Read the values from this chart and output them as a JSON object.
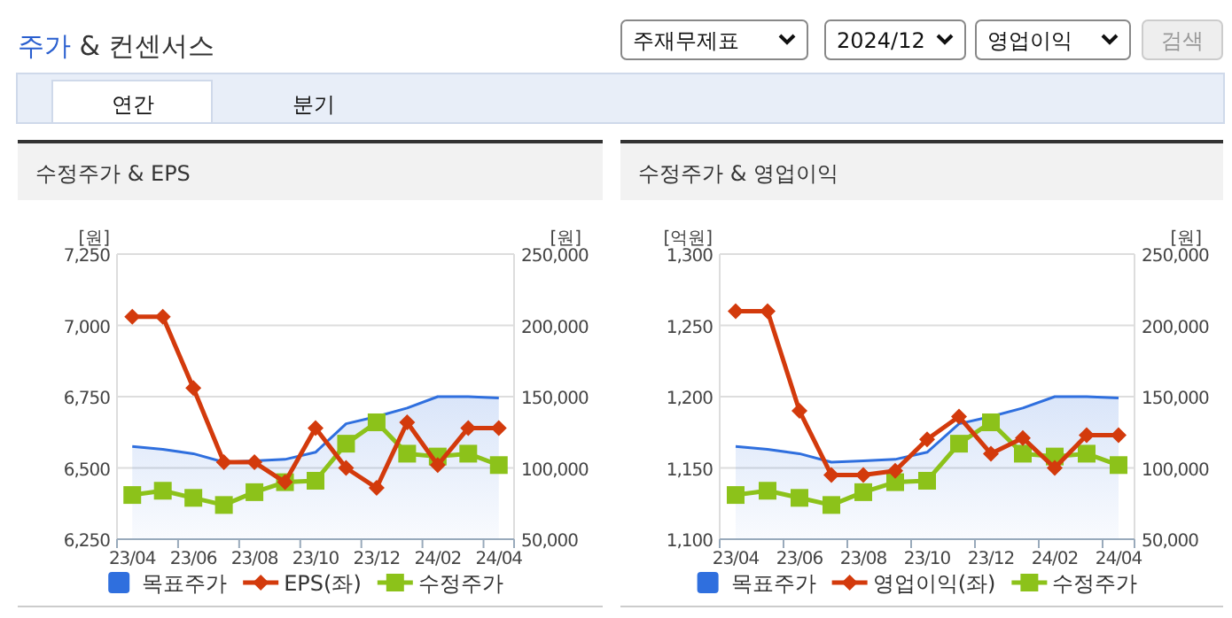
{
  "chart_data": [
    {
      "type": "other",
      "title": "주가 & 컨센서스",
      "annotations": [
        "주재무제표",
        "2024/12",
        "영업이익",
        "검색",
        "연간",
        "분기"
      ]
    },
    {
      "type": "line",
      "title": "수정주가 & EPS",
      "ylabel": "[원]",
      "y2label": "[원]",
      "categories": [
        "23/04",
        null,
        "23/06",
        null,
        "23/08",
        null,
        "23/10",
        null,
        "23/12",
        null,
        "24/02",
        null,
        "24/04"
      ],
      "ylim": [
        6250,
        7250
      ],
      "yticks": [
        {
          "value": 6250,
          "label": "6,250"
        },
        {
          "value": 6500,
          "label": "6,500"
        },
        {
          "value": 6750,
          "label": "6,750"
        },
        {
          "value": 7000,
          "label": "7,000"
        },
        {
          "value": 7250,
          "label": "7,250"
        }
      ],
      "y2lim": [
        50000,
        250000
      ],
      "y2ticks": [
        {
          "value": 50000,
          "label": "50,000"
        },
        {
          "value": 100000,
          "label": "100,000"
        },
        {
          "value": 150000,
          "label": "150,000"
        },
        {
          "value": 200000,
          "label": "200,000"
        },
        {
          "value": 250000,
          "label": "250,000"
        }
      ],
      "grid": "y",
      "legend": "bottom",
      "series": [
        {
          "name": "목표주가",
          "type": "area",
          "axis": "y2",
          "color": "#2f6fde",
          "values": [
            115000,
            113000,
            110000,
            104000,
            105000,
            106000,
            111000,
            131000,
            136000,
            142000,
            150000,
            150000,
            149000
          ]
        },
        {
          "name": "EPS(좌)",
          "type": "line",
          "axis": "y",
          "marker": "diamond",
          "color": "#d33a0c",
          "values": [
            7030,
            7030,
            6780,
            6520,
            6520,
            6450,
            6640,
            6500,
            6430,
            6660,
            6510,
            6640,
            6640
          ]
        },
        {
          "name": "수정주가",
          "type": "line",
          "axis": "y2",
          "marker": "square",
          "color": "#8cc21a",
          "values": [
            81000,
            84000,
            79000,
            74000,
            83000,
            90000,
            91000,
            117000,
            132000,
            110000,
            108000,
            110000,
            102000
          ]
        }
      ]
    },
    {
      "type": "line",
      "title": "수정주가 & 영업이익",
      "ylabel": "[억원]",
      "y2label": "[원]",
      "categories": [
        "23/04",
        null,
        "23/06",
        null,
        "23/08",
        null,
        "23/10",
        null,
        "23/12",
        null,
        "24/02",
        null,
        "24/04"
      ],
      "ylim": [
        1100,
        1300
      ],
      "yticks": [
        {
          "value": 1100,
          "label": "1,100"
        },
        {
          "value": 1150,
          "label": "1,150"
        },
        {
          "value": 1200,
          "label": "1,200"
        },
        {
          "value": 1250,
          "label": "1,250"
        },
        {
          "value": 1300,
          "label": "1,300"
        }
      ],
      "y2lim": [
        50000,
        250000
      ],
      "y2ticks": [
        {
          "value": 50000,
          "label": "50,000"
        },
        {
          "value": 100000,
          "label": "100,000"
        },
        {
          "value": 150000,
          "label": "150,000"
        },
        {
          "value": 200000,
          "label": "200,000"
        },
        {
          "value": 250000,
          "label": "250,000"
        }
      ],
      "grid": "y",
      "legend": "bottom",
      "series": [
        {
          "name": "목표주가",
          "type": "area",
          "axis": "y2",
          "color": "#2f6fde",
          "values": [
            115000,
            113000,
            110000,
            104000,
            105000,
            106000,
            111000,
            131000,
            136000,
            142000,
            150000,
            150000,
            149000
          ]
        },
        {
          "name": "영업이익(좌)",
          "type": "line",
          "axis": "y",
          "marker": "diamond",
          "color": "#d33a0c",
          "values": [
            1260,
            1260,
            1190,
            1145,
            1145,
            1148,
            1170,
            1186,
            1160,
            1171,
            1150,
            1173,
            1173
          ]
        },
        {
          "name": "수정주가",
          "type": "line",
          "axis": "y2",
          "marker": "square",
          "color": "#8cc21a",
          "values": [
            81000,
            84000,
            79000,
            74000,
            83000,
            90000,
            91000,
            117000,
            132000,
            110000,
            108000,
            110000,
            102000
          ]
        }
      ]
    }
  ]
}
